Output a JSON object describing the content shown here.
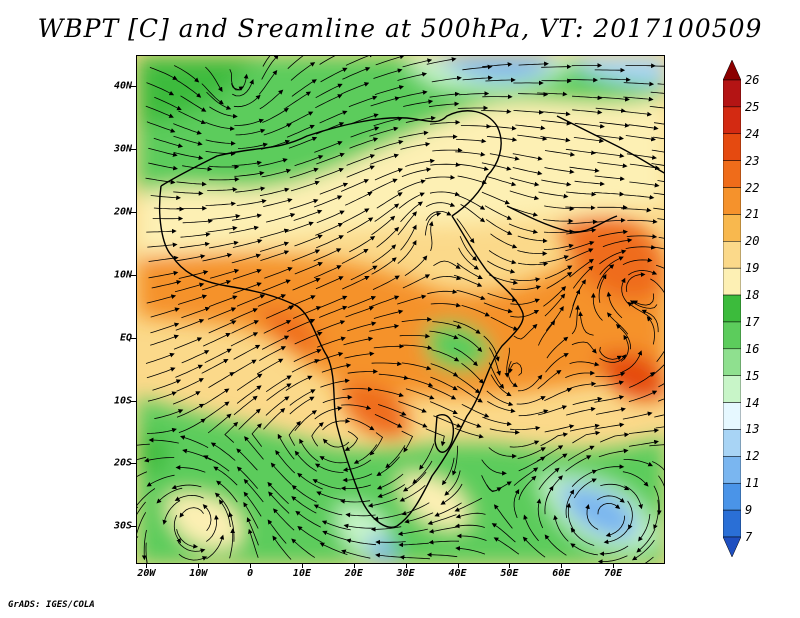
{
  "title": "WBPT [C] and Sreamline at 500hPa, VT: 2017100509",
  "lat_labels": [
    "40N",
    "30N",
    "20N",
    "10N",
    "EQ",
    "10S",
    "20S",
    "30S"
  ],
  "lon_labels": [
    "20W",
    "10W",
    "0",
    "10E",
    "20E",
    "30E",
    "40E",
    "50E",
    "60E",
    "70E"
  ],
  "colorbar": {
    "labels": [
      "26",
      "25",
      "24",
      "23",
      "22",
      "21",
      "20",
      "19",
      "18",
      "17",
      "16",
      "15",
      "14",
      "13",
      "12",
      "11",
      "9",
      "7"
    ],
    "colors": [
      "#8b0000",
      "#b41414",
      "#d32a12",
      "#e54a10",
      "#ef6c1a",
      "#f5922c",
      "#f8b84e",
      "#fbd98a",
      "#fdf0b4",
      "#3cbb3c",
      "#5ccc5c",
      "#8fe08f",
      "#c8f5c8",
      "#e6f8ff",
      "#a8d4f5",
      "#7ab6f0",
      "#4a94e8",
      "#2a6fd6",
      "#1f4fc0"
    ]
  },
  "map_bounds": {
    "lon_min": -22,
    "lon_max": 80,
    "lat_min": -36,
    "lat_max": 45
  },
  "credit": "GrADS: IGES/COLA"
}
